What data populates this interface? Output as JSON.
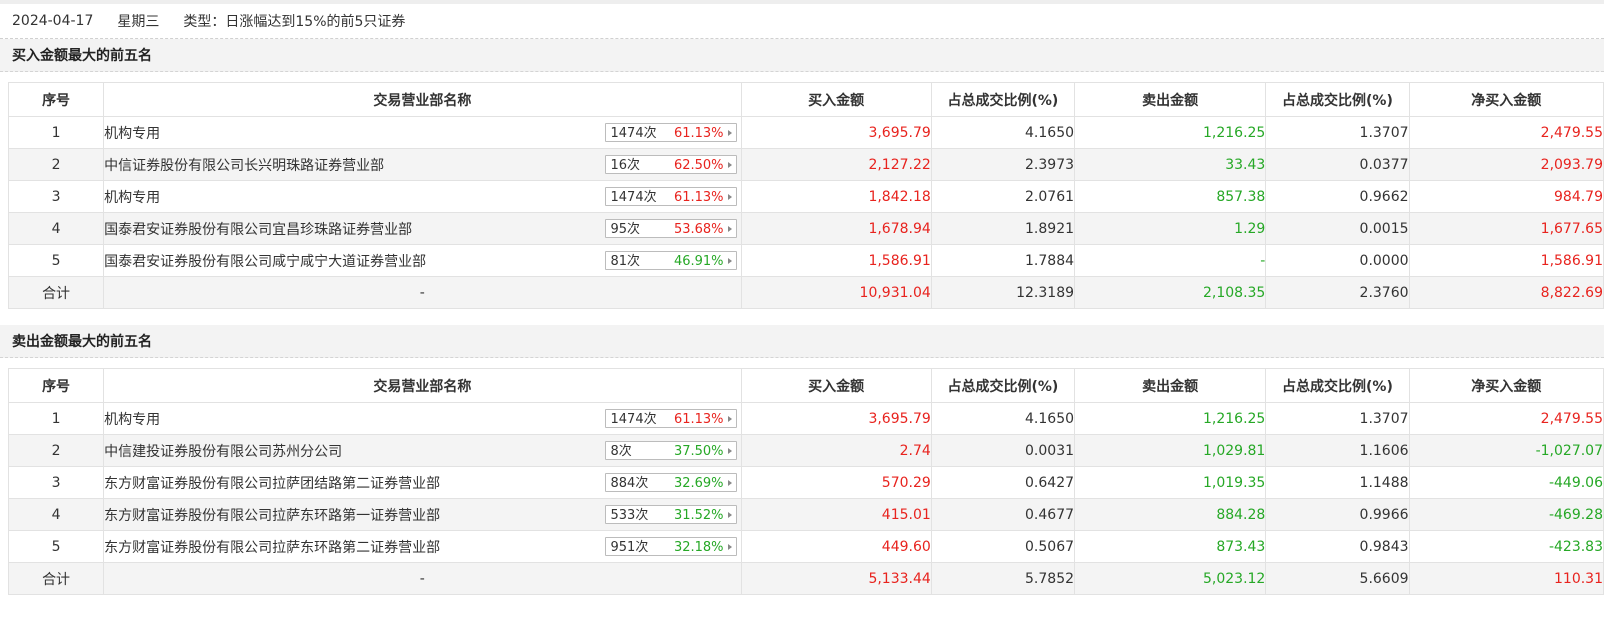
{
  "header": {
    "date": "2024-04-17",
    "weekday": "星期三",
    "type_text": "类型：日涨幅达到15%的前5只证券"
  },
  "colors": {
    "up": "#e8231e",
    "down": "#26a826"
  },
  "columns": [
    "序号",
    "交易营业部名称",
    "买入金额",
    "占总成交比例(%)",
    "卖出金额",
    "占总成交比例(%)",
    "净买入金额"
  ],
  "buy_section": {
    "title": "买入金额最大的前五名",
    "rows": [
      {
        "idx": "1",
        "name": "机构专用",
        "count": "1474次",
        "pct": "61.13%",
        "pct_color": "red",
        "buy": "3,695.79",
        "buy_ratio": "4.1650",
        "sell": "1,216.25",
        "sell_ratio": "1.3707",
        "net": "2,479.55",
        "net_color": "red"
      },
      {
        "idx": "2",
        "name": "中信证券股份有限公司长兴明珠路证券营业部",
        "count": "16次",
        "pct": "62.50%",
        "pct_color": "red",
        "buy": "2,127.22",
        "buy_ratio": "2.3973",
        "sell": "33.43",
        "sell_ratio": "0.0377",
        "net": "2,093.79",
        "net_color": "red"
      },
      {
        "idx": "3",
        "name": "机构专用",
        "count": "1474次",
        "pct": "61.13%",
        "pct_color": "red",
        "buy": "1,842.18",
        "buy_ratio": "2.0761",
        "sell": "857.38",
        "sell_ratio": "0.9662",
        "net": "984.79",
        "net_color": "red"
      },
      {
        "idx": "4",
        "name": "国泰君安证券股份有限公司宜昌珍珠路证券营业部",
        "count": "95次",
        "pct": "53.68%",
        "pct_color": "red",
        "buy": "1,678.94",
        "buy_ratio": "1.8921",
        "sell": "1.29",
        "sell_ratio": "0.0015",
        "net": "1,677.65",
        "net_color": "red"
      },
      {
        "idx": "5",
        "name": "国泰君安证券股份有限公司咸宁咸宁大道证券营业部",
        "count": "81次",
        "pct": "46.91%",
        "pct_color": "green",
        "buy": "1,586.91",
        "buy_ratio": "1.7884",
        "sell": "-",
        "sell_ratio": "0.0000",
        "net": "1,586.91",
        "net_color": "red"
      }
    ],
    "total": {
      "idx": "合计",
      "name": "-",
      "buy": "10,931.04",
      "buy_ratio": "12.3189",
      "sell": "2,108.35",
      "sell_ratio": "2.3760",
      "net": "8,822.69",
      "net_color": "red"
    }
  },
  "sell_section": {
    "title": "卖出金额最大的前五名",
    "rows": [
      {
        "idx": "1",
        "name": "机构专用",
        "count": "1474次",
        "pct": "61.13%",
        "pct_color": "red",
        "buy": "3,695.79",
        "buy_ratio": "4.1650",
        "sell": "1,216.25",
        "sell_ratio": "1.3707",
        "net": "2,479.55",
        "net_color": "red"
      },
      {
        "idx": "2",
        "name": "中信建投证券股份有限公司苏州分公司",
        "count": "8次",
        "pct": "37.50%",
        "pct_color": "green",
        "buy": "2.74",
        "buy_ratio": "0.0031",
        "sell": "1,029.81",
        "sell_ratio": "1.1606",
        "net": "-1,027.07",
        "net_color": "green"
      },
      {
        "idx": "3",
        "name": "东方财富证券股份有限公司拉萨团结路第二证券营业部",
        "count": "884次",
        "pct": "32.69%",
        "pct_color": "green",
        "buy": "570.29",
        "buy_ratio": "0.6427",
        "sell": "1,019.35",
        "sell_ratio": "1.1488",
        "net": "-449.06",
        "net_color": "green"
      },
      {
        "idx": "4",
        "name": "东方财富证券股份有限公司拉萨东环路第一证券营业部",
        "count": "533次",
        "pct": "31.52%",
        "pct_color": "green",
        "buy": "415.01",
        "buy_ratio": "0.4677",
        "sell": "884.28",
        "sell_ratio": "0.9966",
        "net": "-469.28",
        "net_color": "green"
      },
      {
        "idx": "5",
        "name": "东方财富证券股份有限公司拉萨东环路第二证券营业部",
        "count": "951次",
        "pct": "32.18%",
        "pct_color": "green",
        "buy": "449.60",
        "buy_ratio": "0.5067",
        "sell": "873.43",
        "sell_ratio": "0.9843",
        "net": "-423.83",
        "net_color": "green"
      }
    ],
    "total": {
      "idx": "合计",
      "name": "-",
      "buy": "5,133.44",
      "buy_ratio": "5.7852",
      "sell": "5,023.12",
      "sell_ratio": "5.6609",
      "net": "110.31",
      "net_color": "red"
    }
  }
}
